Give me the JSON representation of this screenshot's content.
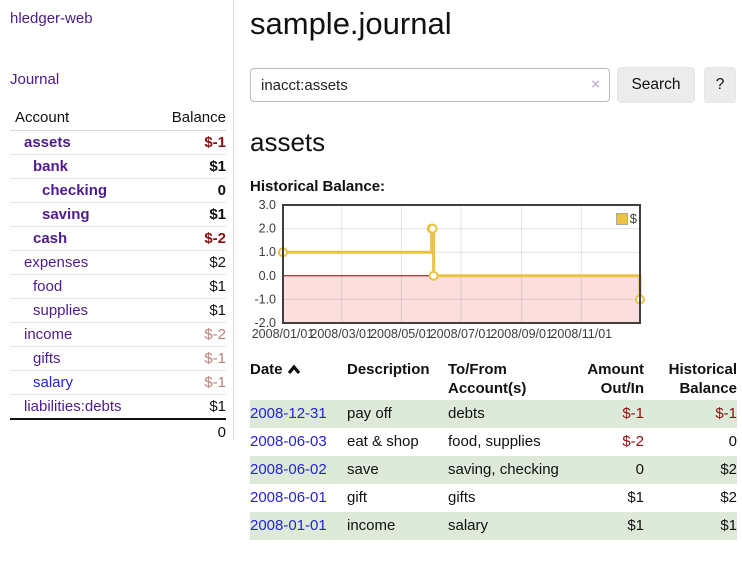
{
  "sidebar": {
    "brand": "hledger-web",
    "journal_label": "Journal",
    "headers": {
      "account": "Account",
      "balance": "Balance"
    },
    "accounts": [
      {
        "name": "assets",
        "balance": "$-1",
        "level": 1,
        "bold": true,
        "balance_tone": "negative-strong",
        "link_tone": "purple"
      },
      {
        "name": "bank",
        "balance": "$1",
        "level": 2,
        "bold": true,
        "balance_tone": "normal",
        "link_tone": "purple"
      },
      {
        "name": "checking",
        "balance": "0",
        "level": 3,
        "bold": true,
        "balance_tone": "normal",
        "link_tone": "purple"
      },
      {
        "name": "saving",
        "balance": "$1",
        "level": 3,
        "bold": true,
        "balance_tone": "normal",
        "link_tone": "purple"
      },
      {
        "name": "cash",
        "balance": "$-2",
        "level": 2,
        "bold": true,
        "balance_tone": "negative-strong",
        "link_tone": "purple"
      },
      {
        "name": "expenses",
        "balance": "$2",
        "level": 1,
        "bold": false,
        "balance_tone": "normal",
        "link_tone": "purple"
      },
      {
        "name": "food",
        "balance": "$1",
        "level": 2,
        "bold": false,
        "balance_tone": "normal",
        "link_tone": "purple"
      },
      {
        "name": "supplies",
        "balance": "$1",
        "level": 2,
        "bold": false,
        "balance_tone": "normal",
        "link_tone": "purple"
      },
      {
        "name": "income",
        "balance": "$-2",
        "level": 1,
        "bold": false,
        "balance_tone": "negative-soft",
        "link_tone": "purple"
      },
      {
        "name": "gifts",
        "balance": "$-1",
        "level": 2,
        "bold": false,
        "balance_tone": "negative-soft",
        "link_tone": "purple"
      },
      {
        "name": "salary",
        "balance": "$-1",
        "level": 2,
        "bold": false,
        "balance_tone": "negative-soft",
        "link_tone": "blue"
      },
      {
        "name": "liabilities:debts",
        "balance": "$1",
        "level": 1,
        "bold": false,
        "balance_tone": "normal",
        "link_tone": "purple"
      }
    ],
    "total": "0"
  },
  "main": {
    "title": "sample.journal",
    "search": {
      "value": "inacct:assets",
      "clear_glyph": "×",
      "button_label": "Search",
      "help_label": "?"
    },
    "section_title": "assets",
    "chart_label": "Historical Balance:"
  },
  "chart_data": {
    "type": "line",
    "title": "Historical Balance",
    "step": true,
    "xlim": [
      "2008/01/01",
      "2008/12/31"
    ],
    "ylim": [
      -2,
      3
    ],
    "yticks": [
      3,
      2,
      1,
      0,
      -1,
      -2
    ],
    "xticks": [
      "2008/01/01",
      "2008/03/01",
      "2008/05/01",
      "2008/07/01",
      "2008/09/01",
      "2008/11/01"
    ],
    "grid": true,
    "legend_position": "top-right",
    "series": [
      {
        "name": "$",
        "color": "#edc240",
        "points": [
          [
            "2008/01/01",
            1
          ],
          [
            "2008/06/01",
            2
          ],
          [
            "2008/06/02",
            2
          ],
          [
            "2008/06/03",
            0
          ],
          [
            "2008/12/31",
            -1
          ]
        ]
      }
    ],
    "colors": {
      "negative_fill": "#fcdede",
      "zero_line": "#8b0000",
      "border": "#3f3f3f",
      "grid": "rgba(0,0,0,0.10)"
    }
  },
  "register": {
    "columns": [
      {
        "label": "Date",
        "align": "left",
        "sorted": "ascending"
      },
      {
        "label": "Description",
        "align": "left"
      },
      {
        "label": "To/From Account(s)",
        "align": "left"
      },
      {
        "label": "Amount Out/In",
        "align": "right"
      },
      {
        "label": "Historical Balance",
        "align": "right"
      }
    ],
    "rows": [
      {
        "date": "2008-12-31",
        "description": "pay off",
        "accounts": "debts",
        "amount": "$-1",
        "balance": "$-1",
        "amount_neg": true,
        "balance_neg": true
      },
      {
        "date": "2008-06-03",
        "description": "eat & shop",
        "accounts": "food, supplies",
        "amount": "$-2",
        "balance": "0",
        "amount_neg": true,
        "balance_neg": false
      },
      {
        "date": "2008-06-02",
        "description": "save",
        "accounts": "saving, checking",
        "amount": "0",
        "balance": "$2",
        "amount_neg": false,
        "balance_neg": false
      },
      {
        "date": "2008-06-01",
        "description": "gift",
        "accounts": "gifts",
        "amount": "$1",
        "balance": "$2",
        "amount_neg": false,
        "balance_neg": false
      },
      {
        "date": "2008-01-01",
        "description": "income",
        "accounts": "salary",
        "amount": "$1",
        "balance": "$1",
        "amount_neg": false,
        "balance_neg": false
      }
    ]
  }
}
